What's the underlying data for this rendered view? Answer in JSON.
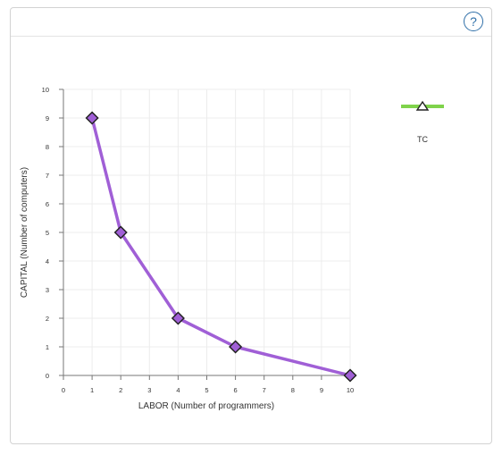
{
  "help_button": {
    "label": "?",
    "icon": "help-icon"
  },
  "chart_data": {
    "type": "line",
    "xlabel": "LABOR (Number of programmers)",
    "ylabel": "CAPITAL (Number of computers)",
    "xlim": [
      0,
      10
    ],
    "ylim": [
      0,
      10
    ],
    "x_ticks": [
      0,
      1,
      2,
      3,
      4,
      5,
      6,
      7,
      8,
      9,
      10
    ],
    "y_ticks": [
      0,
      1,
      2,
      3,
      4,
      5,
      6,
      7,
      8,
      9,
      10
    ],
    "grid": true,
    "series": [
      {
        "x": [
          1,
          2,
          4,
          6,
          10
        ],
        "y": [
          9,
          5,
          2,
          1,
          0
        ],
        "color": "#a05fd6",
        "marker": "diamond"
      }
    ],
    "legend": [
      {
        "name": "TC",
        "color": "#7fd34b",
        "marker": "triangle"
      }
    ],
    "legend_position": "top-right"
  }
}
